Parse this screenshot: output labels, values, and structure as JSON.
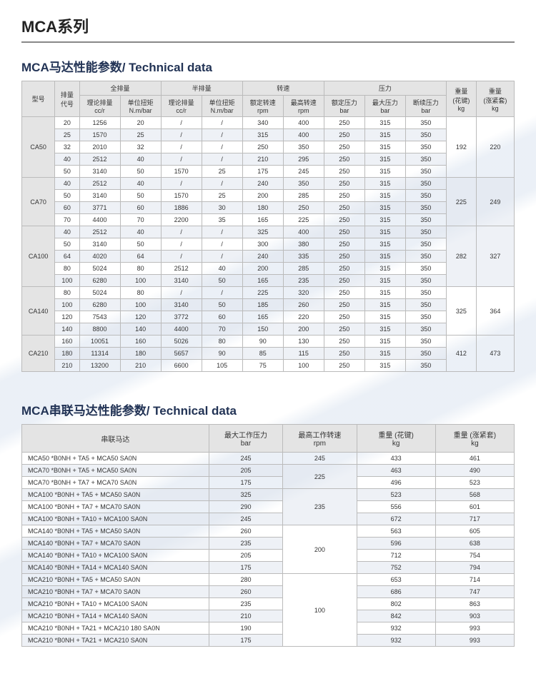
{
  "main_title": "MCA系列",
  "table1": {
    "title": "MCA马达性能参数/ Technical data",
    "header_groups": [
      {
        "label": "型号",
        "colspan": 1,
        "rowspan": 2
      },
      {
        "label": "排量\n代号",
        "colspan": 1,
        "rowspan": 2
      },
      {
        "label": "全排量",
        "colspan": 2,
        "rowspan": 1
      },
      {
        "label": "半排量",
        "colspan": 2,
        "rowspan": 1
      },
      {
        "label": "转速",
        "colspan": 2,
        "rowspan": 1
      },
      {
        "label": "压力",
        "colspan": 3,
        "rowspan": 1
      },
      {
        "label": "重量\n(花键)\nkg",
        "colspan": 1,
        "rowspan": 2
      },
      {
        "label": "重量\n(涨紧套)\nkg",
        "colspan": 1,
        "rowspan": 2
      }
    ],
    "header_sub": [
      "理论排量\ncc/r",
      "单位扭矩\nN.m/bar",
      "理论排量\ncc/r",
      "单位扭矩\nN.m/bar",
      "额定转速\nrpm",
      "最高转速\nrpm",
      "额定压力\nbar",
      "最大压力\nbar",
      "断续压力\nbar"
    ],
    "groups": [
      {
        "model": "CA50",
        "weight_spline": "192",
        "weight_shrink": "220",
        "rows": [
          [
            "20",
            "1256",
            "20",
            "/",
            "/",
            "340",
            "400",
            "250",
            "315",
            "350"
          ],
          [
            "25",
            "1570",
            "25",
            "/",
            "/",
            "315",
            "400",
            "250",
            "315",
            "350"
          ],
          [
            "32",
            "2010",
            "32",
            "/",
            "/",
            "250",
            "350",
            "250",
            "315",
            "350"
          ],
          [
            "40",
            "2512",
            "40",
            "/",
            "/",
            "210",
            "295",
            "250",
            "315",
            "350"
          ],
          [
            "50",
            "3140",
            "50",
            "1570",
            "25",
            "175",
            "245",
            "250",
            "315",
            "350"
          ]
        ]
      },
      {
        "model": "CA70",
        "weight_spline": "225",
        "weight_shrink": "249",
        "rows": [
          [
            "40",
            "2512",
            "40",
            "/",
            "/",
            "240",
            "350",
            "250",
            "315",
            "350"
          ],
          [
            "50",
            "3140",
            "50",
            "1570",
            "25",
            "200",
            "285",
            "250",
            "315",
            "350"
          ],
          [
            "60",
            "3771",
            "60",
            "1886",
            "30",
            "180",
            "250",
            "250",
            "315",
            "350"
          ],
          [
            "70",
            "4400",
            "70",
            "2200",
            "35",
            "165",
            "225",
            "250",
            "315",
            "350"
          ]
        ]
      },
      {
        "model": "CA100",
        "weight_spline": "282",
        "weight_shrink": "327",
        "rows": [
          [
            "40",
            "2512",
            "40",
            "/",
            "/",
            "325",
            "400",
            "250",
            "315",
            "350"
          ],
          [
            "50",
            "3140",
            "50",
            "/",
            "/",
            "300",
            "380",
            "250",
            "315",
            "350"
          ],
          [
            "64",
            "4020",
            "64",
            "/",
            "/",
            "240",
            "335",
            "250",
            "315",
            "350"
          ],
          [
            "80",
            "5024",
            "80",
            "2512",
            "40",
            "200",
            "285",
            "250",
            "315",
            "350"
          ],
          [
            "100",
            "6280",
            "100",
            "3140",
            "50",
            "165",
            "235",
            "250",
            "315",
            "350"
          ]
        ]
      },
      {
        "model": "CA140",
        "weight_spline": "325",
        "weight_shrink": "364",
        "rows": [
          [
            "80",
            "5024",
            "80",
            "/",
            "/",
            "225",
            "320",
            "250",
            "315",
            "350"
          ],
          [
            "100",
            "6280",
            "100",
            "3140",
            "50",
            "185",
            "260",
            "250",
            "315",
            "350"
          ],
          [
            "120",
            "7543",
            "120",
            "3772",
            "60",
            "165",
            "220",
            "250",
            "315",
            "350"
          ],
          [
            "140",
            "8800",
            "140",
            "4400",
            "70",
            "150",
            "200",
            "250",
            "315",
            "350"
          ]
        ]
      },
      {
        "model": "CA210",
        "weight_spline": "412",
        "weight_shrink": "473",
        "rows": [
          [
            "160",
            "10051",
            "160",
            "5026",
            "80",
            "90",
            "130",
            "250",
            "315",
            "350"
          ],
          [
            "180",
            "11314",
            "180",
            "5657",
            "90",
            "85",
            "115",
            "250",
            "315",
            "350"
          ],
          [
            "210",
            "13200",
            "210",
            "6600",
            "105",
            "75",
            "100",
            "250",
            "315",
            "350"
          ]
        ]
      }
    ]
  },
  "table2": {
    "title": "MCA串联马达性能参数/ Technical data",
    "headers": [
      "串联马达",
      "最大工作压力\nbar",
      "最高工作转速\nrpm",
      "重量 (花键)\nkg",
      "重量 (涨紧套)\nkg"
    ],
    "rpm_groups": [
      {
        "rpm": "245",
        "rows": [
          [
            "MCA50 *B0NH + TA5  + MCA50 SA0N",
            "245",
            "433",
            "461"
          ]
        ]
      },
      {
        "rpm": "225",
        "rows": [
          [
            "MCA70 *B0NH + TA5  + MCA50 SA0N",
            "205",
            "463",
            "490"
          ],
          [
            "MCA70 *B0NH + TA7  + MCA70 SA0N",
            "175",
            "496",
            "523"
          ]
        ]
      },
      {
        "rpm": "235",
        "rows": [
          [
            "MCA100 *B0NH + TA5  + MCA50 SA0N",
            "325",
            "523",
            "568"
          ],
          [
            "MCA100 *B0NH + TA7  + MCA70 SA0N",
            "290",
            "556",
            "601"
          ],
          [
            "MCA100 *B0NH + TA10 + MCA100 SA0N",
            "245",
            "672",
            "717"
          ]
        ]
      },
      {
        "rpm": "200",
        "rows": [
          [
            "MCA140 *B0NH + TA5  + MCA50 SA0N",
            "260",
            "563",
            "605"
          ],
          [
            "MCA140 *B0NH + TA7  + MCA70 SA0N",
            "235",
            "596",
            "638"
          ],
          [
            "MCA140 *B0NH + TA10 + MCA100 SA0N",
            "205",
            "712",
            "754"
          ],
          [
            "MCA140 *B0NH + TA14 + MCA140 SA0N",
            "175",
            "752",
            "794"
          ]
        ]
      },
      {
        "rpm": "100",
        "rows": [
          [
            "MCA210 *B0NH + TA5  + MCA50 SA0N",
            "280",
            "653",
            "714"
          ],
          [
            "MCA210 *B0NH + TA7  + MCA70 SA0N",
            "260",
            "686",
            "747"
          ],
          [
            "MCA210 *B0NH + TA10 + MCA100 SA0N",
            "235",
            "802",
            "863"
          ],
          [
            "MCA210 *B0NH + TA14 + MCA140 SA0N",
            "210",
            "842",
            "903"
          ],
          [
            "MCA210 *B0NH + TA21 + MCA210 180 SA0N",
            "190",
            "932",
            "993"
          ],
          [
            "MCA210 *B0NH + TA21 + MCA210 SA0N",
            "175",
            "932",
            "993"
          ]
        ]
      }
    ],
    "col_widths": [
      "38%",
      "15%",
      "15%",
      "16%",
      "16%"
    ]
  },
  "colors": {
    "header_bg": "#e4e4e4",
    "alt_row_bg": "rgba(224,230,238,0.55)",
    "border": "#bbbbbb"
  }
}
